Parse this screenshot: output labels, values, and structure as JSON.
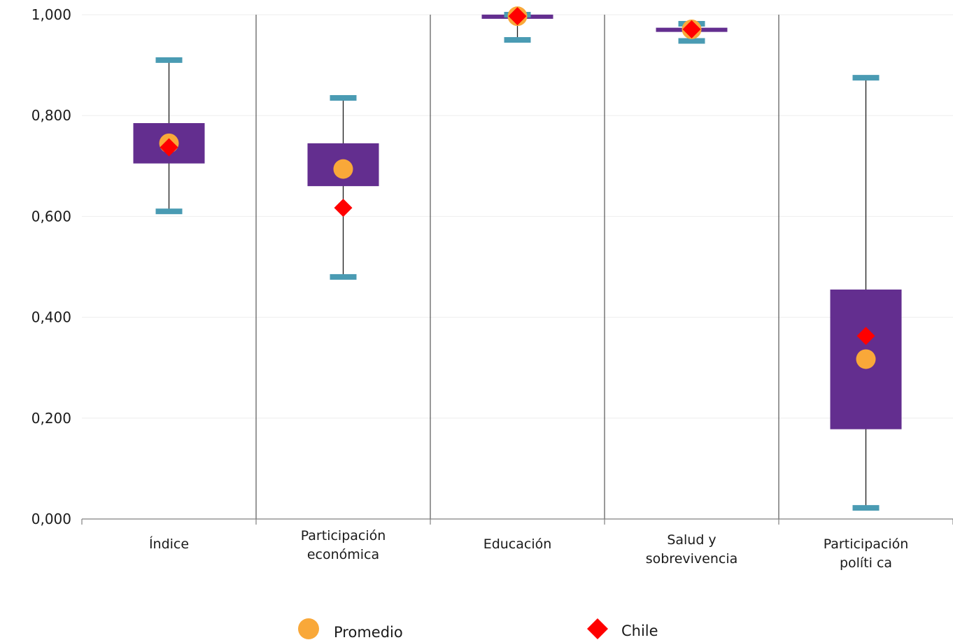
{
  "chart_data": {
    "type": "boxplot",
    "ylim": [
      0,
      1
    ],
    "yticks": [
      {
        "value": 0.0,
        "label": "0,000"
      },
      {
        "value": 0.2,
        "label": "0,200"
      },
      {
        "value": 0.4,
        "label": "0,400"
      },
      {
        "value": 0.6,
        "label": "0,600"
      },
      {
        "value": 0.8,
        "label": "0,800"
      },
      {
        "value": 1.0,
        "label": "1,000"
      }
    ],
    "grid": true,
    "categories": [
      {
        "lines": [
          "Índice"
        ],
        "min": 0.61,
        "q1": 0.705,
        "q3": 0.785,
        "max": 0.91,
        "promedio": 0.745,
        "chile": 0.737
      },
      {
        "lines": [
          "Participación",
          "económica"
        ],
        "min": 0.48,
        "q1": 0.66,
        "q3": 0.745,
        "max": 0.835,
        "promedio": 0.694,
        "chile": 0.617
      },
      {
        "lines": [
          "Educación"
        ],
        "min": 0.95,
        "q1": 0.992,
        "q3": 1.0,
        "max": 1.0,
        "promedio": 0.997,
        "chile": 0.997
      },
      {
        "lines": [
          "Salud y",
          "sobrevivencia"
        ],
        "min": 0.948,
        "q1": 0.967,
        "q3": 0.973,
        "max": 0.982,
        "promedio": 0.971,
        "chile": 0.971
      },
      {
        "lines": [
          "Participación",
          "políti ca"
        ],
        "min": 0.022,
        "q1": 0.178,
        "q3": 0.455,
        "max": 0.875,
        "promedio": 0.317,
        "chile": 0.363
      }
    ],
    "legend": [
      {
        "name": "Promedio",
        "marker": "circle",
        "color": "#f9a839"
      },
      {
        "name": "Chile",
        "marker": "diamond",
        "color": "#ff0000"
      }
    ],
    "legend_position": "bottom",
    "colors": {
      "box": "#632e8f",
      "whisker_cap": "#4a9bb3",
      "whisker_line": "#1a1a1a",
      "grid": "#eeeeee"
    }
  }
}
